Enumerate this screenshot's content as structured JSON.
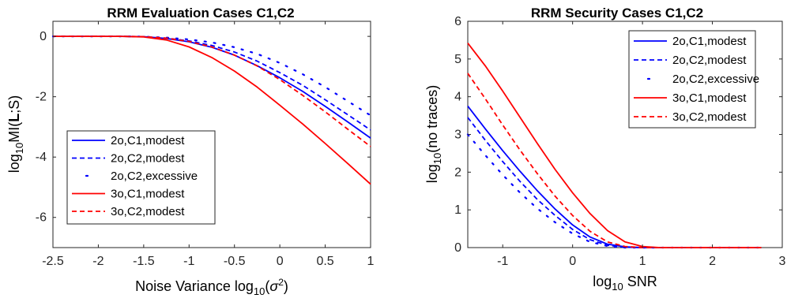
{
  "chart_data": [
    {
      "type": "line",
      "title": "RRM Evaluation Cases C1,C2",
      "xlabel": {
        "main": "Noise Variance log",
        "sub": "10",
        "post": "(",
        "sym": "σ",
        "sup": "2",
        "close": ")"
      },
      "ylabel": {
        "pre": "log",
        "sub": "10",
        "main": "MI(",
        "bold": "L",
        "post": ";S)"
      },
      "xlim": [
        -2.5,
        1
      ],
      "ylim": [
        -7,
        0.5
      ],
      "xticks": [
        "-2.5",
        "-2",
        "-1.5",
        "-1",
        "-0.5",
        "0",
        "0.5",
        "1"
      ],
      "yticks": [
        "0",
        "-2",
        "-4",
        "-6"
      ],
      "xtick_values": [
        -2.5,
        -2,
        -1.5,
        -1,
        -0.5,
        0,
        0.5,
        1
      ],
      "ytick_values": [
        0,
        -2,
        -4,
        -6
      ],
      "grid": false,
      "legend_position": "lower-left",
      "series": [
        {
          "name": "2o,C1,modest",
          "color": "#0000ff",
          "style": "solid",
          "x": [
            -2.5,
            -1.75,
            -1.5,
            -1.25,
            -1.0,
            -0.75,
            -0.5,
            -0.25,
            0.0,
            0.25,
            0.5,
            0.75,
            1.0
          ],
          "y": [
            0,
            0,
            -0.01,
            -0.07,
            -0.18,
            -0.36,
            -0.62,
            -0.97,
            -1.37,
            -1.82,
            -2.32,
            -2.84,
            -3.37
          ]
        },
        {
          "name": "2o,C2,modest",
          "color": "#0000ff",
          "style": "dashed",
          "x": [
            -2.5,
            -1.75,
            -1.5,
            -1.25,
            -1.0,
            -0.75,
            -0.5,
            -0.25,
            0.0,
            0.25,
            0.5,
            0.75,
            1.0
          ],
          "y": [
            0,
            0,
            -0.01,
            -0.06,
            -0.15,
            -0.3,
            -0.52,
            -0.82,
            -1.2,
            -1.62,
            -2.1,
            -2.6,
            -3.1
          ]
        },
        {
          "name": "2o,C2,excessive",
          "color": "#0000ff",
          "style": "dotted",
          "x": [
            -2.5,
            -1.75,
            -1.5,
            -1.25,
            -1.0,
            -0.75,
            -0.5,
            -0.25,
            0.0,
            0.25,
            0.5,
            0.75,
            1.0
          ],
          "y": [
            0,
            0,
            -0.01,
            -0.04,
            -0.1,
            -0.2,
            -0.36,
            -0.58,
            -0.88,
            -1.25,
            -1.68,
            -2.15,
            -2.62
          ]
        },
        {
          "name": "3o,C1,modest",
          "color": "#ff0000",
          "style": "solid",
          "x": [
            -2.5,
            -1.75,
            -1.5,
            -1.25,
            -1.0,
            -0.75,
            -0.5,
            -0.25,
            0.0,
            0.25,
            0.5,
            0.75,
            1.0
          ],
          "y": [
            0,
            0,
            -0.02,
            -0.12,
            -0.35,
            -0.7,
            -1.15,
            -1.68,
            -2.28,
            -2.9,
            -3.55,
            -4.22,
            -4.9
          ]
        },
        {
          "name": "3o,C2,modest",
          "color": "#ff0000",
          "style": "dashed",
          "x": [
            -2.5,
            -1.75,
            -1.5,
            -1.25,
            -1.0,
            -0.75,
            -0.5,
            -0.25,
            0.0,
            0.25,
            0.5,
            0.75,
            1.0
          ],
          "y": [
            0,
            0,
            -0.01,
            -0.06,
            -0.17,
            -0.35,
            -0.62,
            -0.98,
            -1.43,
            -1.95,
            -2.5,
            -3.08,
            -3.65
          ]
        }
      ]
    },
    {
      "type": "line",
      "title": "RRM Security Cases C1,C2",
      "xlabel": {
        "pre": "log",
        "sub": "10",
        "main": " SNR"
      },
      "ylabel": {
        "pre": "log",
        "sub": "10",
        "main": "(no traces)"
      },
      "xlim": [
        -1.5,
        3
      ],
      "ylim": [
        0,
        6
      ],
      "xticks": [
        "-1",
        "0",
        "1",
        "2",
        "3"
      ],
      "yticks": [
        "0",
        "1",
        "2",
        "3",
        "4",
        "5",
        "6"
      ],
      "xtick_values": [
        -1,
        0,
        1,
        2,
        3
      ],
      "ytick_values": [
        0,
        1,
        2,
        3,
        4,
        5,
        6
      ],
      "grid": false,
      "legend_position": "top-right",
      "series": [
        {
          "name": "2o,C1,modest",
          "color": "#0000ff",
          "style": "solid",
          "x": [
            -1.5,
            -1.25,
            -1.0,
            -0.75,
            -0.5,
            -0.25,
            0.0,
            0.25,
            0.5,
            0.75,
            1.0,
            1.25,
            2.7
          ],
          "y": [
            3.75,
            3.15,
            2.57,
            2.02,
            1.5,
            1.02,
            0.6,
            0.28,
            0.09,
            0.02,
            0.0,
            0.0,
            0.0
          ]
        },
        {
          "name": "2o,C2,modest",
          "color": "#0000ff",
          "style": "dashed",
          "x": [
            -1.5,
            -1.25,
            -1.0,
            -0.75,
            -0.5,
            -0.25,
            0.0,
            0.25,
            0.5,
            0.75,
            1.0,
            1.25,
            2.7
          ],
          "y": [
            3.45,
            2.85,
            2.28,
            1.75,
            1.27,
            0.85,
            0.48,
            0.21,
            0.06,
            0.01,
            0.0,
            0.0,
            0.0
          ]
        },
        {
          "name": "2o,C2,excessive",
          "color": "#0000ff",
          "style": "dotted",
          "x": [
            -1.5,
            -1.25,
            -1.0,
            -0.75,
            -0.5,
            -0.25,
            0.0,
            0.25,
            0.5,
            0.75,
            1.0,
            1.25,
            2.7
          ],
          "y": [
            3.0,
            2.45,
            1.93,
            1.45,
            1.03,
            0.67,
            0.37,
            0.15,
            0.04,
            0.0,
            0.0,
            0.0,
            0.0
          ]
        },
        {
          "name": "3o,C1,modest",
          "color": "#ff0000",
          "style": "solid",
          "x": [
            -1.5,
            -1.25,
            -1.0,
            -0.75,
            -0.5,
            -0.25,
            0.0,
            0.25,
            0.5,
            0.75,
            1.0,
            1.25,
            2.7
          ],
          "y": [
            5.42,
            4.82,
            4.15,
            3.45,
            2.75,
            2.07,
            1.45,
            0.9,
            0.45,
            0.15,
            0.03,
            0.0,
            0.0
          ]
        },
        {
          "name": "3o,C2,modest",
          "color": "#ff0000",
          "style": "dashed",
          "x": [
            -1.5,
            -1.25,
            -1.0,
            -0.75,
            -0.5,
            -0.25,
            0.0,
            0.25,
            0.5,
            0.75,
            1.0,
            1.25,
            2.7
          ],
          "y": [
            4.62,
            3.95,
            3.25,
            2.58,
            1.95,
            1.36,
            0.85,
            0.43,
            0.15,
            0.03,
            0.0,
            0.0,
            0.0
          ]
        }
      ]
    }
  ]
}
